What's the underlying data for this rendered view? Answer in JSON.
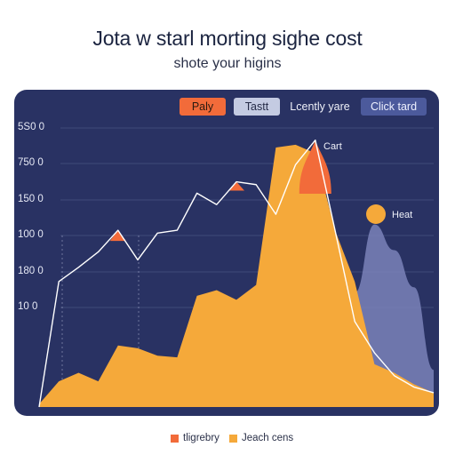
{
  "header": {
    "title": "Jota w starl morting sighe cost",
    "subtitle": "shote your higins"
  },
  "tabs": [
    {
      "label": "Paly"
    },
    {
      "label": "Tastt"
    },
    {
      "label": "Lcently yare"
    },
    {
      "label": "Click tard"
    }
  ],
  "colors": {
    "panel": "#293263",
    "orange_area": "#f5a93a",
    "peak_accent": "#f26b3a",
    "purple_area": "#7a82b8",
    "line": "#ffffff"
  },
  "chart_data": {
    "type": "area",
    "y_tick_labels": [
      "5S0 0",
      "750 0",
      "150 0",
      "100 0",
      "180 0",
      "10 0"
    ],
    "annotations": [
      "Cart",
      "Heat"
    ],
    "x": [
      0,
      1,
      2,
      3,
      4,
      5,
      6,
      7,
      8,
      9,
      10,
      11,
      12,
      13,
      14,
      15,
      16,
      17,
      18,
      19,
      20
    ],
    "ylim": [
      0,
      480
    ],
    "series": [
      {
        "name": "Jeach cens",
        "style": "area",
        "values": [
          5,
          45,
          60,
          45,
          108,
          103,
          90,
          87,
          195,
          205,
          188,
          214,
          455,
          460,
          445,
          310,
          220,
          75,
          60,
          40,
          25
        ]
      },
      {
        "name": "",
        "style": "area",
        "values": [
          0,
          0,
          0,
          0,
          0,
          0,
          0,
          0,
          0,
          0,
          0,
          0,
          0,
          0,
          0,
          0,
          200,
          320,
          275,
          210,
          65
        ]
      },
      {
        "name": "tligrebry",
        "style": "line",
        "values": [
          0,
          220,
          245,
          272,
          310,
          258,
          305,
          310,
          375,
          355,
          395,
          390,
          338,
          425,
          468,
          310,
          150,
          95,
          55,
          35,
          25
        ]
      }
    ],
    "legend": {
      "position": "bottom",
      "entries": [
        "tligrebry",
        "Jeach cens"
      ]
    }
  }
}
